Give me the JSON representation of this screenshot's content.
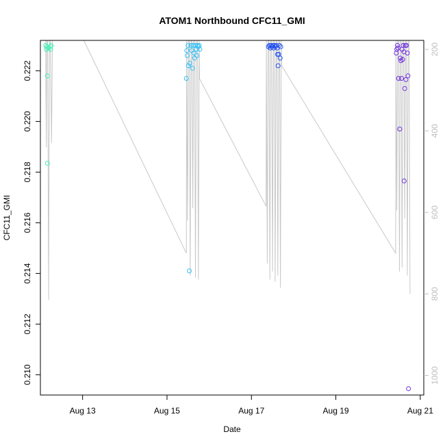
{
  "chart_data": {
    "type": "scatter",
    "title": "ATOM1 Northbound CFC11_GMI",
    "xlabel": "Date",
    "ylabel": "CFC11_GMI",
    "xlim": [
      "2016-08-12 00:00",
      "2016-08-21 02:00"
    ],
    "ylim": [
      0.2092,
      0.2232
    ],
    "x_ticks": [
      {
        "date": "2016-08-13 00:00",
        "label": "Aug 13"
      },
      {
        "date": "2016-08-15 00:00",
        "label": "Aug 15"
      },
      {
        "date": "2016-08-17 00:00",
        "label": "Aug 17"
      },
      {
        "date": "2016-08-19 00:00",
        "label": "Aug 19"
      },
      {
        "date": "2016-08-21 00:00",
        "label": "Aug 21"
      }
    ],
    "y_ticks": [
      0.21,
      0.212,
      0.214,
      0.216,
      0.218,
      0.22,
      0.222
    ],
    "y_tick_labels": [
      "0.210",
      "0.212",
      "0.214",
      "0.216",
      "0.218",
      "0.220",
      "0.222"
    ],
    "y2_lim": [
      1048,
      178
    ],
    "y2_ticks": [
      200,
      400,
      600,
      800,
      1000
    ],
    "y2_tick_labels": [
      "200",
      "400",
      "600",
      "800",
      "1000"
    ],
    "y2_color": "#bebebe",
    "grid": false,
    "legend": "none",
    "line_color": "#c8c8c8",
    "point_style": "open-circle",
    "series": [
      {
        "color": "#40f0b8",
        "points": [
          [
            "2016-08-12 03:00",
            0.223
          ],
          [
            "2016-08-12 03:20",
            0.22285
          ],
          [
            "2016-08-12 03:40",
            0.22295
          ],
          [
            "2016-08-12 04:00",
            0.2218
          ],
          [
            "2016-08-12 04:00",
            0.21835
          ],
          [
            "2016-08-12 04:30",
            0.2229
          ],
          [
            "2016-08-12 05:40",
            0.22295
          ],
          [
            "2016-08-12 05:50",
            0.22285
          ],
          [
            "2016-08-12 06:10",
            0.223
          ]
        ]
      },
      {
        "color": "#30c0f8",
        "points": [
          [
            "2016-08-15 11:00",
            0.2217
          ],
          [
            "2016-08-15 11:15",
            0.2228
          ],
          [
            "2016-08-15 11:30",
            0.2226
          ],
          [
            "2016-08-15 12:00",
            0.223
          ],
          [
            "2016-08-15 12:10",
            0.2222
          ],
          [
            "2016-08-15 12:40",
            0.2141
          ],
          [
            "2016-08-15 13:00",
            0.2223
          ],
          [
            "2016-08-15 13:40",
            0.223
          ],
          [
            "2016-08-15 14:00",
            0.2228
          ],
          [
            "2016-08-15 14:30",
            0.2221
          ],
          [
            "2016-08-15 15:00",
            0.223
          ],
          [
            "2016-08-15 15:20",
            0.2227
          ],
          [
            "2016-08-15 15:40",
            0.2225
          ],
          [
            "2016-08-15 16:10",
            0.223
          ],
          [
            "2016-08-15 16:40",
            0.22285
          ],
          [
            "2016-08-15 17:00",
            0.2226
          ],
          [
            "2016-08-15 17:20",
            0.223
          ],
          [
            "2016-08-15 17:50",
            0.22295
          ],
          [
            "2016-08-15 18:20",
            0.223
          ],
          [
            "2016-08-15 18:40",
            0.22285
          ]
        ]
      },
      {
        "color": "#2050f0",
        "points": [
          [
            "2016-08-17 09:40",
            0.22295
          ],
          [
            "2016-08-17 10:10",
            0.223
          ],
          [
            "2016-08-17 10:40",
            0.2229
          ],
          [
            "2016-08-17 11:10",
            0.223
          ],
          [
            "2016-08-17 11:40",
            0.22295
          ],
          [
            "2016-08-17 12:10",
            0.223
          ],
          [
            "2016-08-17 12:40",
            0.2229
          ],
          [
            "2016-08-17 13:10",
            0.223
          ],
          [
            "2016-08-17 13:40",
            0.22295
          ],
          [
            "2016-08-17 14:10",
            0.223
          ],
          [
            "2016-08-17 14:40",
            0.2229
          ],
          [
            "2016-08-17 14:50",
            0.22265
          ],
          [
            "2016-08-17 15:10",
            0.2222
          ],
          [
            "2016-08-17 15:30",
            0.22265
          ],
          [
            "2016-08-17 15:50",
            0.223
          ],
          [
            "2016-08-17 16:20",
            0.2225
          ],
          [
            "2016-08-17 16:40",
            0.22295
          ]
        ]
      },
      {
        "color": "#7030e0",
        "points": [
          [
            "2016-08-20 10:20",
            0.2227
          ],
          [
            "2016-08-20 10:40",
            0.22285
          ],
          [
            "2016-08-20 11:00",
            0.223
          ],
          [
            "2016-08-20 11:20",
            0.2229
          ],
          [
            "2016-08-20 11:40",
            0.2217
          ],
          [
            "2016-08-20 12:20",
            0.2197
          ],
          [
            "2016-08-20 12:40",
            0.2225
          ],
          [
            "2016-08-20 13:00",
            0.2224
          ],
          [
            "2016-08-20 13:20",
            0.2217
          ],
          [
            "2016-08-20 13:40",
            0.22285
          ],
          [
            "2016-08-20 14:00",
            0.22245
          ],
          [
            "2016-08-20 14:20",
            0.223
          ],
          [
            "2016-08-20 14:40",
            0.22275
          ],
          [
            "2016-08-20 14:50",
            0.21765
          ],
          [
            "2016-08-20 15:10",
            0.2213
          ],
          [
            "2016-08-20 15:30",
            0.223
          ],
          [
            "2016-08-20 15:50",
            0.22165
          ],
          [
            "2016-08-20 16:10",
            0.223
          ],
          [
            "2016-08-20 16:40",
            0.2227
          ],
          [
            "2016-08-20 17:00",
            0.2218
          ],
          [
            "2016-08-20 17:20",
            0.20945
          ]
        ]
      }
    ],
    "pressure_trace": [
      [
        "2016-08-12 03:00",
        178
      ],
      [
        "2016-08-12 03:20",
        440
      ],
      [
        "2016-08-12 03:40",
        178
      ],
      [
        "2016-08-12 04:10",
        178
      ],
      [
        "2016-08-12 04:40",
        815
      ],
      [
        "2016-08-12 05:10",
        178
      ],
      [
        "2016-08-12 05:40",
        178
      ],
      [
        "2016-08-12 06:20",
        430
      ],
      [
        "2016-08-12 06:50",
        178
      ],
      [
        "2016-08-13 00:40",
        178
      ],
      [
        "2016-08-15 11:00",
        700
      ],
      [
        "2016-08-15 11:10",
        178
      ],
      [
        "2016-08-15 11:40",
        620
      ],
      [
        "2016-08-15 12:10",
        178
      ],
      [
        "2016-08-15 12:40",
        178
      ],
      [
        "2016-08-15 13:10",
        755
      ],
      [
        "2016-08-15 13:40",
        178
      ],
      [
        "2016-08-15 14:10",
        178
      ],
      [
        "2016-08-15 14:40",
        590
      ],
      [
        "2016-08-15 15:10",
        178
      ],
      [
        "2016-08-15 15:40",
        178
      ],
      [
        "2016-08-15 16:10",
        760
      ],
      [
        "2016-08-15 16:40",
        178
      ],
      [
        "2016-08-15 17:20",
        178
      ],
      [
        "2016-08-15 17:50",
        765
      ],
      [
        "2016-08-15 18:20",
        178
      ],
      [
        "2016-08-15 18:30",
        272
      ],
      [
        "2016-08-17 08:20",
        585
      ],
      [
        "2016-08-17 08:30",
        178
      ],
      [
        "2016-08-17 09:00",
        725
      ],
      [
        "2016-08-17 09:30",
        178
      ],
      [
        "2016-08-17 10:00",
        178
      ],
      [
        "2016-08-17 10:30",
        765
      ],
      [
        "2016-08-17 11:00",
        178
      ],
      [
        "2016-08-17 11:30",
        178
      ],
      [
        "2016-08-17 12:00",
        745
      ],
      [
        "2016-08-17 12:30",
        178
      ],
      [
        "2016-08-17 13:00",
        178
      ],
      [
        "2016-08-17 13:30",
        770
      ],
      [
        "2016-08-17 14:00",
        178
      ],
      [
        "2016-08-17 14:30",
        178
      ],
      [
        "2016-08-17 15:00",
        755
      ],
      [
        "2016-08-17 15:30",
        178
      ],
      [
        "2016-08-17 16:00",
        178
      ],
      [
        "2016-08-17 16:30",
        785
      ],
      [
        "2016-08-17 17:00",
        178
      ],
      [
        "2016-08-17 17:10",
        240
      ],
      [
        "2016-08-20 10:00",
        700
      ],
      [
        "2016-08-20 10:10",
        178
      ],
      [
        "2016-08-20 10:40",
        595
      ],
      [
        "2016-08-20 11:10",
        178
      ],
      [
        "2016-08-20 11:40",
        178
      ],
      [
        "2016-08-20 12:10",
        745
      ],
      [
        "2016-08-20 12:40",
        178
      ],
      [
        "2016-08-20 13:10",
        178
      ],
      [
        "2016-08-20 13:40",
        735
      ],
      [
        "2016-08-20 14:10",
        178
      ],
      [
        "2016-08-20 14:40",
        178
      ],
      [
        "2016-08-20 15:10",
        615
      ],
      [
        "2016-08-20 15:40",
        178
      ],
      [
        "2016-08-20 16:10",
        178
      ],
      [
        "2016-08-20 16:40",
        755
      ],
      [
        "2016-08-20 17:10",
        178
      ],
      [
        "2016-08-20 17:40",
        178
      ],
      [
        "2016-08-20 18:10",
        800
      ]
    ]
  }
}
